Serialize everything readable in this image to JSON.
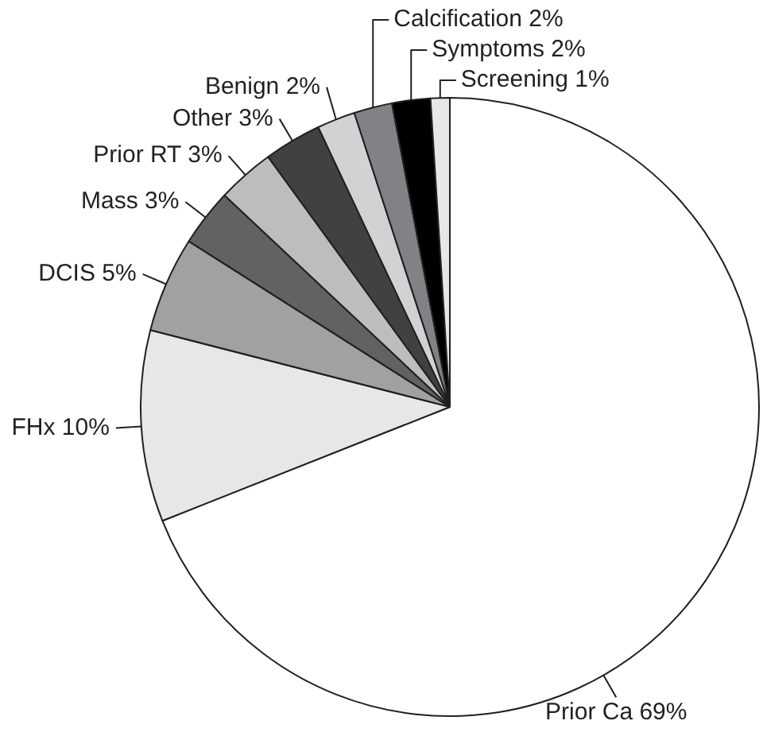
{
  "chart_data": {
    "type": "pie",
    "categories": [
      "Prior Ca",
      "FHx",
      "DCIS",
      "Mass",
      "Prior RT",
      "Other",
      "Benign",
      "Calcification",
      "Symptoms",
      "Screening"
    ],
    "values": [
      69,
      10,
      5,
      3,
      3,
      3,
      2,
      2,
      2,
      1
    ],
    "colors": [
      "#ffffff",
      "#e6e7e8",
      "#a0a1a3",
      "#616264",
      "#bcbdbf",
      "#414042",
      "#d1d2d4",
      "#808285",
      "#000000",
      "#e6e7e8"
    ],
    "value_labels": [
      "69%",
      "10%",
      "5%",
      "3%",
      "3%",
      "3%",
      "2%",
      "2%",
      "2%",
      "1%"
    ],
    "legend": false
  }
}
